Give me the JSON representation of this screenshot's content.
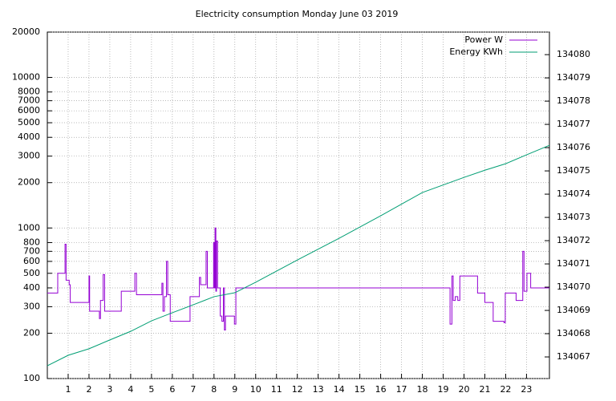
{
  "chart_data": {
    "type": "line",
    "title": "Electricity consumption Monday June 03 2019",
    "step": true,
    "grid": true,
    "yscale": "log",
    "legend": "top-right",
    "xlim": [
      0,
      24.1
    ],
    "xticks": [
      1,
      2,
      3,
      4,
      5,
      6,
      7,
      8,
      9,
      10,
      11,
      12,
      13,
      14,
      15,
      16,
      17,
      18,
      19,
      20,
      21,
      22,
      23
    ],
    "ylim": [
      100,
      20000
    ],
    "yticks": [
      100,
      200,
      300,
      400,
      500,
      600,
      700,
      800,
      1000,
      2000,
      3000,
      4000,
      5000,
      6000,
      7000,
      8000,
      10000,
      20000
    ],
    "y2lim": [
      134066.07,
      134080.97
    ],
    "y2ticks": [
      134067,
      134068,
      134069,
      134070,
      134071,
      134072,
      134073,
      134074,
      134075,
      134076,
      134077,
      134078,
      134079,
      134080
    ],
    "series": [
      {
        "name": "Power W",
        "color": "#9400d3",
        "step": true,
        "x": [
          0,
          0.5,
          0.85,
          0.9,
          1.05,
          1.1,
          2.0,
          2.03,
          2.5,
          2.55,
          2.68,
          2.75,
          3.55,
          4.2,
          4.28,
          5.5,
          5.55,
          5.62,
          5.72,
          5.78,
          5.9,
          6.85,
          7.3,
          7.36,
          7.62,
          7.68,
          7.98,
          8.02,
          8.05,
          8.09,
          8.12,
          8.17,
          8.3,
          8.38,
          8.45,
          8.5,
          8.55,
          8.98,
          9.05,
          19.33,
          19.42,
          19.48,
          19.58,
          19.7,
          19.8,
          20.65,
          21.0,
          21.4,
          21.92,
          21.98,
          22.5,
          22.82,
          22.88,
          23.02,
          23.2,
          24.1
        ],
        "values": [
          370,
          500,
          780,
          450,
          420,
          320,
          480,
          280,
          250,
          330,
          490,
          280,
          380,
          500,
          360,
          430,
          280,
          350,
          600,
          360,
          240,
          350,
          470,
          420,
          700,
          400,
          800,
          400,
          1000,
          380,
          820,
          400,
          260,
          240,
          400,
          210,
          260,
          230,
          400,
          230,
          480,
          330,
          350,
          330,
          480,
          370,
          320,
          240,
          235,
          370,
          330,
          700,
          380,
          500,
          400,
          400
        ]
      },
      {
        "name": "Energy KWh",
        "color": "#009e73",
        "axis": "y2",
        "step": false,
        "x": [
          0,
          1,
          2,
          3,
          4,
          5,
          6,
          7,
          8,
          9,
          10,
          12,
          14,
          16,
          18,
          20,
          21,
          22,
          23,
          24.1
        ],
        "values": [
          134066.62,
          134067.07,
          134067.35,
          134067.73,
          134068.1,
          134068.55,
          134068.9,
          134069.24,
          134069.59,
          134069.76,
          134070.21,
          134071.17,
          134072.1,
          134073.07,
          134074.07,
          134074.72,
          134075.03,
          134075.31,
          134075.69,
          134076.1
        ]
      }
    ]
  }
}
